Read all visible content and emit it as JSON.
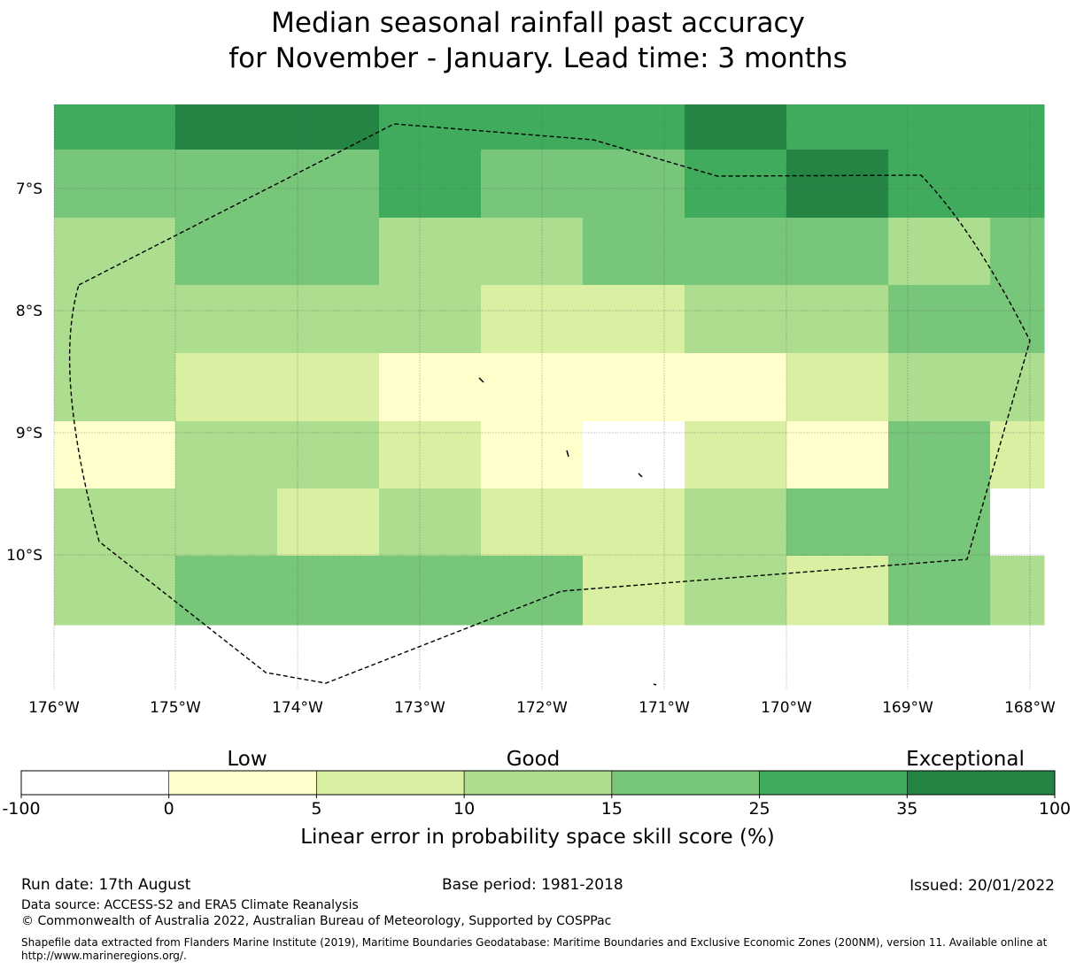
{
  "title": {
    "line1": "Median seasonal rainfall past accuracy",
    "line2": "for November - January. Lead time: 3 months"
  },
  "map": {
    "lat_labels": [
      "7°S",
      "8°S",
      "9°S",
      "10°S"
    ],
    "lon_labels": [
      "176°W",
      "175°W",
      "174°W",
      "173°W",
      "172°W",
      "171°W",
      "170°W",
      "169°W",
      "168°W"
    ],
    "grid_values": [
      [
        25,
        35,
        35,
        25,
        25,
        25,
        35,
        25,
        25,
        25
      ],
      [
        15,
        15,
        15,
        25,
        15,
        15,
        25,
        35,
        25,
        25
      ],
      [
        10,
        15,
        15,
        10,
        10,
        15,
        15,
        15,
        10,
        15
      ],
      [
        10,
        10,
        10,
        10,
        5,
        5,
        10,
        10,
        15,
        15
      ],
      [
        10,
        5,
        5,
        0,
        0,
        0,
        0,
        5,
        10,
        10
      ],
      [
        0,
        10,
        10,
        5,
        0,
        -100,
        5,
        0,
        15,
        5
      ],
      [
        10,
        10,
        5,
        10,
        5,
        5,
        10,
        15,
        15,
        -100
      ],
      [
        10,
        15,
        15,
        15,
        15,
        5,
        10,
        5,
        15,
        10
      ]
    ]
  },
  "legend": {
    "category_labels": [
      "Low",
      "Good",
      "Exceptional"
    ],
    "boundaries": [
      "-100",
      "0",
      "5",
      "10",
      "15",
      "25",
      "35",
      "100"
    ],
    "colors": [
      "#ffffff",
      "#ffffcc",
      "#d9f0a3",
      "#addd8e",
      "#78c679",
      "#41ab5d",
      "#238443"
    ],
    "axis_label": "Linear error in probability space skill score (%)"
  },
  "footer": {
    "run_date": "Run date: 17th August",
    "base_period": "Base period: 1981-2018",
    "issued": "Issued: 20/01/2022",
    "data_source": "Data source: ACCESS-S2 and ERA5 Climate Reanalysis",
    "copyright": "© Commonwealth of Australia 2022, Australian Bureau of Meteorology, Supported by COSPPac",
    "shapefile": "Shapefile data extracted from Flanders Marine Institute (2019), Maritime Boundaries Geodatabase: Maritime Boundaries and Exclusive Economic Zones (200NM), version 11. Available online at http://www.marineregions.org/."
  }
}
